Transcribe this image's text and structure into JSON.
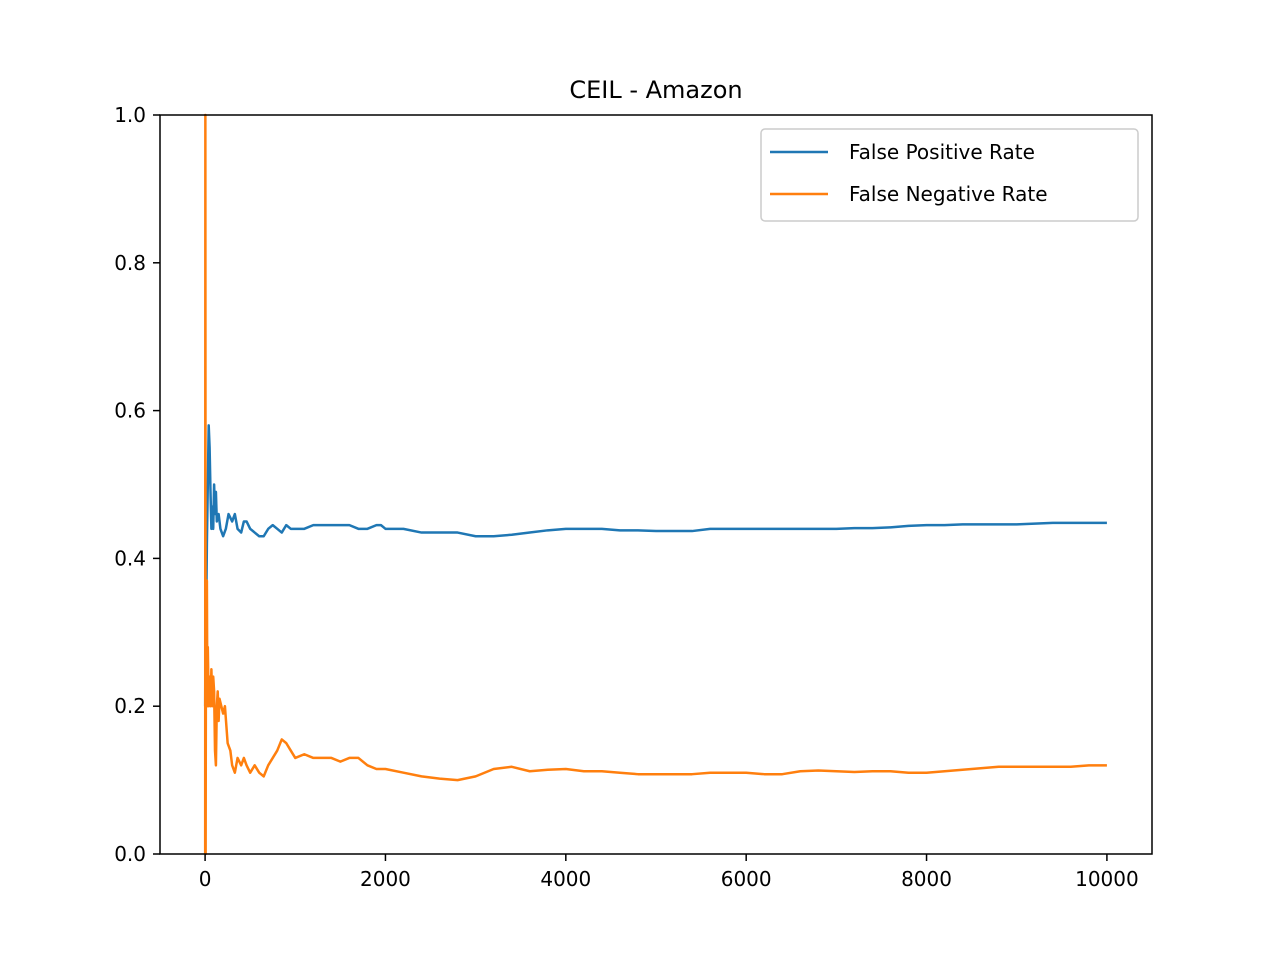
{
  "chart_data": {
    "type": "line",
    "title": "CEIL - Amazon",
    "xlabel": "",
    "ylabel": "",
    "xlim": [
      -500,
      10500
    ],
    "ylim": [
      0.0,
      1.0
    ],
    "x_ticks": [
      0,
      2000,
      4000,
      6000,
      8000,
      10000
    ],
    "y_ticks": [
      0.0,
      0.2,
      0.4,
      0.6,
      0.8,
      1.0
    ],
    "x_tick_labels": [
      "0",
      "2000",
      "4000",
      "6000",
      "8000",
      "10000"
    ],
    "y_tick_labels": [
      "0.0",
      "0.2",
      "0.4",
      "0.6",
      "0.8",
      "1.0"
    ],
    "grid": false,
    "legend_position": "top-right",
    "series": [
      {
        "name": "False Positive Rate",
        "color": "#1f77b4",
        "x": [
          1,
          5,
          10,
          20,
          30,
          40,
          50,
          60,
          70,
          80,
          90,
          100,
          110,
          120,
          130,
          150,
          170,
          200,
          230,
          260,
          300,
          330,
          360,
          400,
          430,
          460,
          500,
          550,
          600,
          650,
          700,
          750,
          800,
          850,
          900,
          950,
          1000,
          1100,
          1200,
          1300,
          1400,
          1500,
          1600,
          1700,
          1800,
          1900,
          1950,
          2000,
          2200,
          2400,
          2600,
          2800,
          3000,
          3200,
          3400,
          3600,
          3800,
          4000,
          4200,
          4400,
          4600,
          4800,
          5000,
          5200,
          5400,
          5600,
          5800,
          6000,
          6200,
          6400,
          6600,
          6800,
          7000,
          7200,
          7400,
          7600,
          7800,
          8000,
          8200,
          8400,
          8600,
          8800,
          9000,
          9200,
          9400,
          9600,
          9800,
          10000
        ],
        "y": [
          0.2,
          0.35,
          0.3,
          0.42,
          0.5,
          0.58,
          0.55,
          0.49,
          0.44,
          0.47,
          0.44,
          0.5,
          0.46,
          0.49,
          0.45,
          0.46,
          0.44,
          0.43,
          0.44,
          0.46,
          0.45,
          0.46,
          0.44,
          0.435,
          0.45,
          0.45,
          0.44,
          0.435,
          0.43,
          0.43,
          0.44,
          0.445,
          0.44,
          0.435,
          0.445,
          0.44,
          0.44,
          0.44,
          0.445,
          0.445,
          0.445,
          0.445,
          0.445,
          0.44,
          0.44,
          0.445,
          0.445,
          0.44,
          0.44,
          0.435,
          0.435,
          0.435,
          0.43,
          0.43,
          0.432,
          0.435,
          0.438,
          0.44,
          0.44,
          0.44,
          0.438,
          0.438,
          0.437,
          0.437,
          0.437,
          0.44,
          0.44,
          0.44,
          0.44,
          0.44,
          0.44,
          0.44,
          0.44,
          0.441,
          0.441,
          0.442,
          0.444,
          0.445,
          0.445,
          0.446,
          0.446,
          0.446,
          0.446,
          0.447,
          0.448,
          0.448,
          0.448,
          0.448
        ]
      },
      {
        "name": "False Negative Rate",
        "color": "#ff7f0e",
        "x": [
          1,
          3,
          6,
          10,
          14,
          20,
          25,
          30,
          40,
          50,
          60,
          70,
          80,
          90,
          100,
          110,
          120,
          130,
          140,
          150,
          160,
          180,
          200,
          220,
          250,
          280,
          300,
          330,
          360,
          400,
          430,
          460,
          500,
          550,
          600,
          650,
          700,
          750,
          800,
          850,
          900,
          950,
          1000,
          1100,
          1200,
          1300,
          1400,
          1500,
          1600,
          1700,
          1800,
          1900,
          2000,
          2200,
          2400,
          2600,
          2800,
          3000,
          3200,
          3400,
          3600,
          3800,
          4000,
          4200,
          4400,
          4600,
          4800,
          5000,
          5200,
          5400,
          5600,
          5800,
          6000,
          6200,
          6400,
          6600,
          6800,
          7000,
          7200,
          7400,
          7600,
          7800,
          8000,
          8200,
          8400,
          8600,
          8800,
          9000,
          9200,
          9400,
          9600,
          9800,
          10000
        ],
        "y": [
          0.0,
          1.0,
          0.0,
          0.33,
          0.2,
          0.37,
          0.2,
          0.28,
          0.2,
          0.24,
          0.2,
          0.25,
          0.2,
          0.24,
          0.22,
          0.14,
          0.12,
          0.2,
          0.22,
          0.18,
          0.21,
          0.2,
          0.19,
          0.2,
          0.15,
          0.14,
          0.12,
          0.11,
          0.13,
          0.12,
          0.13,
          0.12,
          0.11,
          0.12,
          0.11,
          0.105,
          0.12,
          0.13,
          0.14,
          0.155,
          0.15,
          0.14,
          0.13,
          0.135,
          0.13,
          0.13,
          0.13,
          0.125,
          0.13,
          0.13,
          0.12,
          0.115,
          0.115,
          0.11,
          0.105,
          0.102,
          0.1,
          0.105,
          0.115,
          0.118,
          0.112,
          0.114,
          0.115,
          0.112,
          0.112,
          0.11,
          0.108,
          0.108,
          0.108,
          0.108,
          0.11,
          0.11,
          0.11,
          0.108,
          0.108,
          0.112,
          0.113,
          0.112,
          0.111,
          0.112,
          0.112,
          0.11,
          0.11,
          0.112,
          0.114,
          0.116,
          0.118,
          0.118,
          0.118,
          0.118,
          0.118,
          0.12,
          0.12
        ]
      }
    ]
  }
}
